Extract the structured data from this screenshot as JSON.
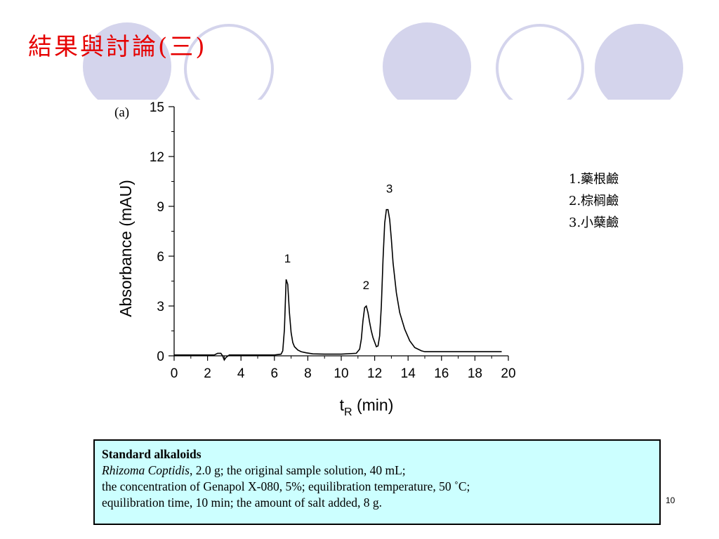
{
  "slide": {
    "title": "結果與討論(三)",
    "page_number": "10",
    "decor_color": "#d4d4ec",
    "title_color": "#e60000"
  },
  "legend": [
    "1.藥根鹼",
    "2.棕榈鹼",
    "3.小蘖鹼"
  ],
  "info_box": {
    "heading": "Standard alkaloids",
    "species": "Rhizoma Coptidis",
    "line1_rest": ", 2.0 g; the original sample solution, 40 mL;",
    "line2": "the concentration of Genapol X-080, 5%; equilibration temperature, 50 ˚C;",
    "line3": "equilibration time, 10 min; the amount of salt added, 8 g.",
    "background": "#ccffff"
  },
  "chart_data": {
    "type": "line",
    "panel_label": "(a)",
    "xlabel_main": "t",
    "xlabel_sub": "R",
    "xlabel_unit": " (min)",
    "ylabel": "Absorbance (mAU)",
    "xlim": [
      0,
      20
    ],
    "ylim": [
      0,
      15
    ],
    "xticks": [
      "0",
      "2",
      "4",
      "6",
      "8",
      "10",
      "12",
      "14",
      "16",
      "18",
      "20"
    ],
    "yticks": [
      "0",
      "3",
      "6",
      "9",
      "12",
      "15"
    ],
    "grid": false,
    "line_color": "#000000",
    "peaks": [
      {
        "label": "1",
        "x": 6.7,
        "y": 4.6
      },
      {
        "label": "2",
        "x": 11.4,
        "y": 3.0
      },
      {
        "label": "3",
        "x": 12.8,
        "y": 8.8
      }
    ],
    "series": [
      {
        "x": [
          0,
          2.0,
          2.4,
          2.6,
          2.8,
          2.9,
          3.0,
          3.1,
          3.3,
          3.6,
          4.0,
          5.0,
          6.0,
          6.4,
          6.5,
          6.6,
          6.7,
          6.8,
          6.9,
          7.0,
          7.1,
          7.2,
          7.4,
          7.6,
          7.9,
          8.3,
          9.0,
          10.0,
          10.9,
          11.1,
          11.2,
          11.3,
          11.4,
          11.5,
          11.6,
          11.7,
          11.8,
          11.9,
          12.1,
          12.2,
          12.3,
          12.4,
          12.5,
          12.6,
          12.7,
          12.8,
          12.9,
          13.0,
          13.1,
          13.3,
          13.5,
          13.8,
          14.1,
          14.4,
          14.8,
          15.0,
          16.0,
          18.0,
          19.6
        ],
        "y": [
          0.05,
          0.05,
          0.05,
          0.15,
          0.15,
          0.0,
          -0.25,
          -0.1,
          0.05,
          0.05,
          0.05,
          0.05,
          0.05,
          0.1,
          0.3,
          1.6,
          4.6,
          4.3,
          2.6,
          1.4,
          0.8,
          0.55,
          0.35,
          0.25,
          0.18,
          0.12,
          0.1,
          0.1,
          0.15,
          0.4,
          1.0,
          2.1,
          2.9,
          3.0,
          2.6,
          2.0,
          1.5,
          1.1,
          0.55,
          0.6,
          1.2,
          3.0,
          5.8,
          8.0,
          8.8,
          8.8,
          8.2,
          7.0,
          5.6,
          3.8,
          2.6,
          1.6,
          0.9,
          0.5,
          0.3,
          0.25,
          0.25,
          0.25,
          0.25
        ]
      }
    ]
  }
}
